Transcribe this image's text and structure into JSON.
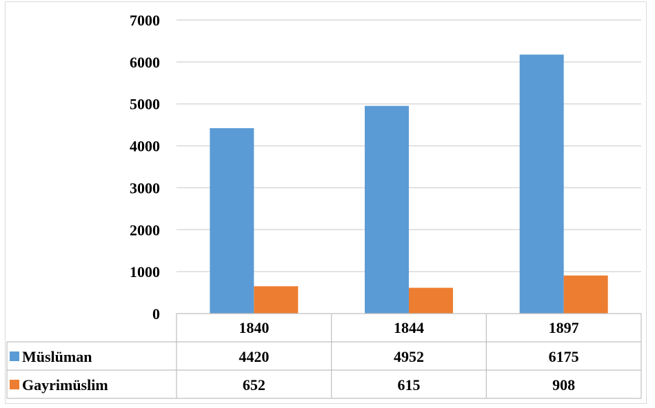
{
  "chart_data": {
    "type": "bar",
    "categories": [
      "1840",
      "1844",
      "1897"
    ],
    "series": [
      {
        "name": "Müslüman",
        "values": [
          4420,
          4952,
          6175
        ],
        "value_labels": [
          "4420",
          "4952",
          "6175"
        ],
        "color": "#5b9bd5"
      },
      {
        "name": "Gayrimüslim",
        "values": [
          652,
          615,
          908
        ],
        "value_labels": [
          "652",
          "615",
          "908"
        ],
        "color": "#ed7d31"
      }
    ],
    "ylim": [
      0,
      7000
    ],
    "yticks": [
      "0",
      "1000",
      "2000",
      "3000",
      "4000",
      "5000",
      "6000",
      "7000"
    ],
    "grid": true,
    "legend": "data-table"
  },
  "colors": {
    "gridline": "#d9d9d9",
    "border": "#bfbfbf"
  }
}
